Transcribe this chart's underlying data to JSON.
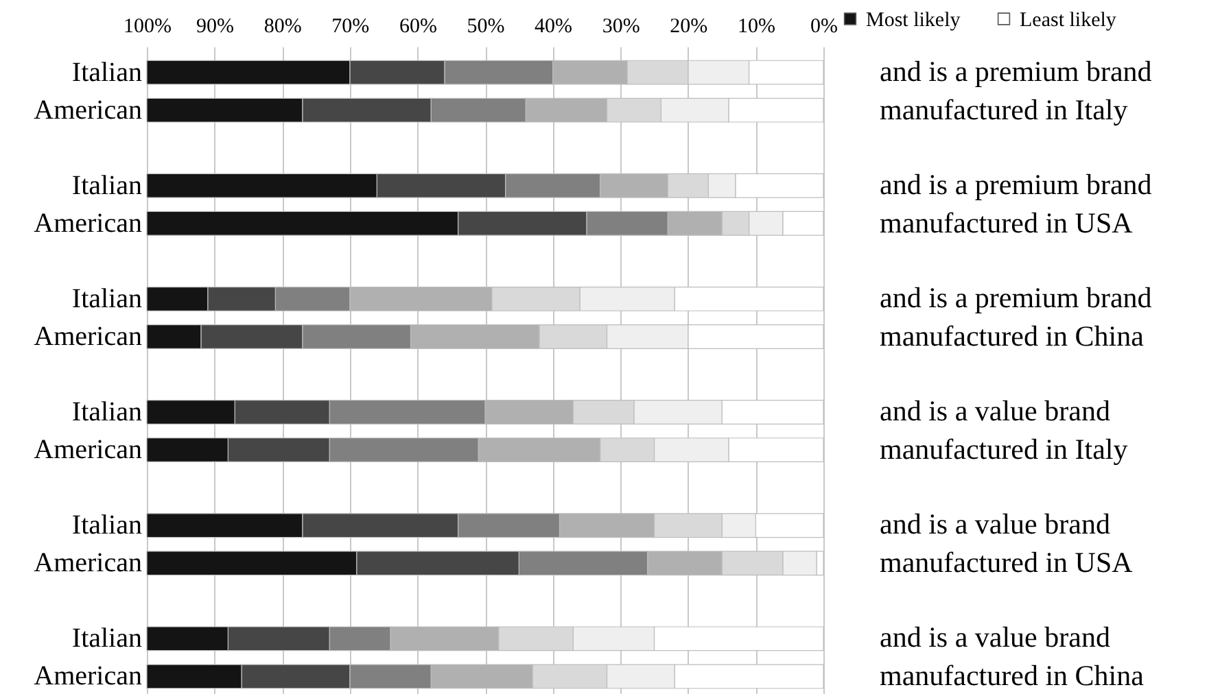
{
  "chart_data": {
    "type": "bar",
    "orientation": "horizontal",
    "stacked": true,
    "categories": [
      "Italian",
      "American",
      "Italian",
      "American",
      "Italian",
      "American",
      "Italian",
      "American",
      "Italian",
      "American",
      "Italian",
      "American"
    ],
    "series": [
      {
        "name": "Least likely",
        "color": "#ffffff",
        "values": [
          11,
          14,
          13,
          6,
          22,
          20,
          15,
          14,
          10,
          1,
          25,
          22
        ]
      },
      {
        "color": "#efefef",
        "values": [
          9,
          10,
          4,
          5,
          14,
          12,
          13,
          11,
          5,
          5,
          12,
          10
        ]
      },
      {
        "color": "#d9d9d9",
        "values": [
          9,
          8,
          6,
          4,
          13,
          10,
          9,
          8,
          10,
          9,
          11,
          11
        ]
      },
      {
        "color": "#b0b0b0",
        "values": [
          11,
          12,
          10,
          8,
          21,
          19,
          13,
          18,
          14,
          11,
          16,
          15
        ]
      },
      {
        "color": "#808080",
        "values": [
          16,
          14,
          14,
          12,
          11,
          16,
          23,
          22,
          15,
          19,
          9,
          12
        ]
      },
      {
        "color": "#464646",
        "values": [
          14,
          19,
          19,
          19,
          10,
          15,
          14,
          15,
          23,
          24,
          15,
          16
        ]
      },
      {
        "name": "Most likely",
        "color": "#141414",
        "values": [
          30,
          23,
          34,
          46,
          9,
          8,
          13,
          12,
          23,
          31,
          12,
          14
        ]
      }
    ],
    "xlim": [
      100,
      0
    ],
    "xticks": [
      {
        "value": 100,
        "label": "100%"
      },
      {
        "value": 90,
        "label": "90%"
      },
      {
        "value": 80,
        "label": "80%"
      },
      {
        "value": 70,
        "label": "70%"
      },
      {
        "value": 60,
        "label": "60%"
      },
      {
        "value": 50,
        "label": "50%"
      },
      {
        "value": 40,
        "label": "40%"
      },
      {
        "value": 30,
        "label": "30%"
      },
      {
        "value": 20,
        "label": "20%"
      },
      {
        "value": 10,
        "label": "10%"
      },
      {
        "value": 0,
        "label": "0%"
      }
    ],
    "grid": "x",
    "legend": "top right",
    "annotations": [
      "and is a premium brand\nmanufactured in Italy",
      "and is a premium brand\nmanufactured in USA",
      "and is a premium brand\nmanufactured in China",
      "and is a value brand\nmanufactured in Italy",
      "and is a value brand\nmanufactured in USA",
      "and is a value brand\nmanufactured in China"
    ]
  }
}
